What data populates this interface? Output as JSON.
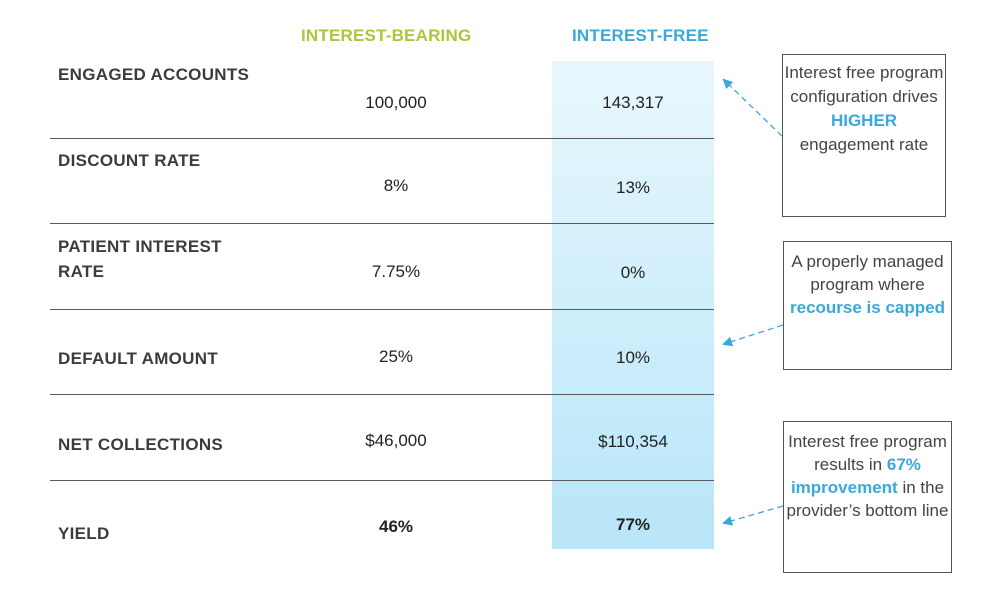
{
  "columns": {
    "interest_bearing": "INTEREST-BEARING",
    "interest_free": "INTEREST-FREE"
  },
  "rows": [
    {
      "label_lines": [
        "ENGAGED ACCOUNTS"
      ],
      "bearing": "100,000",
      "free": "143,317"
    },
    {
      "label_lines": [
        "DISCOUNT RATE"
      ],
      "bearing": "8%",
      "free": "13%"
    },
    {
      "label_lines": [
        "PATIENT INTEREST",
        "RATE"
      ],
      "bearing": "7.75%",
      "free": "0%"
    },
    {
      "label_lines": [
        "DEFAULT AMOUNT"
      ],
      "bearing": "25%",
      "free": "10%"
    },
    {
      "label_lines": [
        "NET COLLECTIONS"
      ],
      "bearing": "$46,000",
      "free": "$110,354"
    },
    {
      "label_lines": [
        "YIELD"
      ],
      "bearing": "46%",
      "free": "77%"
    }
  ],
  "callouts": {
    "engagement": {
      "pre": "Interest free program configuration drives",
      "highlight": "HIGHER",
      "post": "engagement rate"
    },
    "recourse": {
      "pre": "A properly managed program where",
      "highlight": "recourse is capped",
      "post": ""
    },
    "improvement": {
      "pre": "Interest free program results in",
      "highlight": "67% improvement",
      "post": "in the provider’s bottom line"
    }
  },
  "colors": {
    "bearing_header": "#a9c63c",
    "free_header": "#3aa9d9",
    "highlight": "#3aa9d9"
  }
}
